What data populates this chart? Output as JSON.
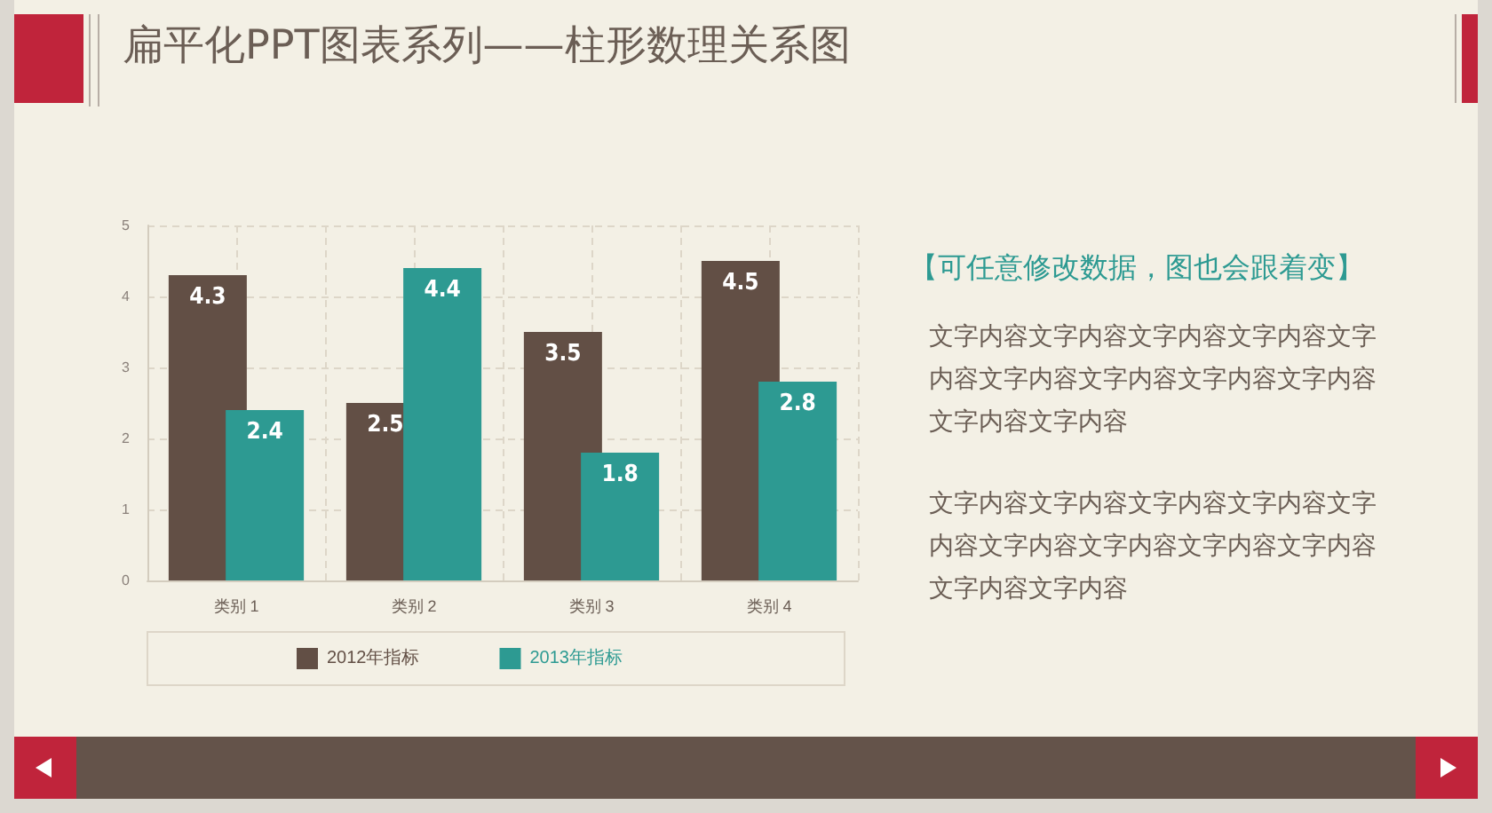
{
  "chart_data": {
    "type": "bar",
    "title": "扁平化PPT图表系列——柱形数理关系图",
    "categories": [
      "类别 1",
      "类别 2",
      "类别 3",
      "类别 4"
    ],
    "series": [
      {
        "name": "2012年指标",
        "color": "#624f45",
        "values": [
          4.3,
          2.5,
          3.5,
          4.5
        ]
      },
      {
        "name": "2013年指标",
        "color": "#2d9a92",
        "values": [
          2.4,
          4.4,
          1.8,
          2.8
        ]
      }
    ],
    "ylim": [
      0,
      5
    ],
    "yticks": [
      0,
      1,
      2,
      3,
      4,
      5
    ],
    "grid": true,
    "legend": "bottom",
    "data_labels": true,
    "annotations": [
      "【可任意修改数据，图也会跟着变】",
      "文字内容文字内容文字内容文字内容文字内容文字内容文字内容文字内容文字内容文字内容文字内容",
      "文字内容文字内容文字内容文字内容文字内容文字内容文字内容文字内容文字内容文字内容文字内容"
    ]
  }
}
